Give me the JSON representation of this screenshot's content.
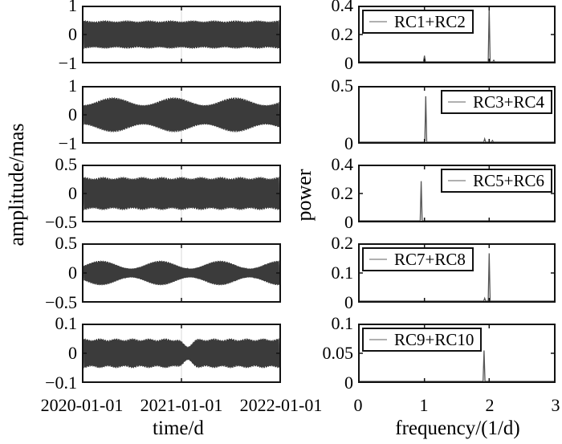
{
  "figure": {
    "background": "#ffffff",
    "frame_color": "#121212",
    "signal_color": "#3b3b3b",
    "spectrum_color": "#555555",
    "legend_sample_color": "#b0b0b0",
    "gridline_color": "#d9d9d9",
    "tick_color": "#121212"
  },
  "axes": {
    "left_ylabel": "amplitude/mas",
    "right_ylabel": "power",
    "left_xlabel": "time/d",
    "right_xlabel": "frequency/(1/d)"
  },
  "chart_data": {
    "layout": "5 rows x 2 columns",
    "left_column": {
      "type": "line",
      "xlabel": "time/d",
      "ylabel": "amplitude/mas",
      "xticklabels": [
        "2020-01-01",
        "2021-01-01",
        "2022-01-01"
      ],
      "grid_at": "2021-01-01",
      "panels": [
        {
          "name": "RC1+RC2 time series",
          "ylim": [
            -1,
            1
          ],
          "yticks": [
            "1",
            "0",
            "−1"
          ],
          "signal": {
            "amplitude": 0.5,
            "mod_depth": 0.02,
            "mod_cycles": 9,
            "mod_peak_t": 0.0,
            "carrier_cycles": 241
          }
        },
        {
          "name": "RC3+RC4 time series",
          "ylim": [
            -1,
            1
          ],
          "yticks": [
            "1",
            "0",
            "−1"
          ],
          "signal": {
            "amplitude": 0.5,
            "mod_depth": 0.14,
            "mod_cycles": 3.2,
            "mod_peak_t": 0.15,
            "carrier_cycles": 241
          }
        },
        {
          "name": "RC5+RC6 time series",
          "ylim": [
            -0.5,
            0.5
          ],
          "yticks": [
            "0.5",
            "0",
            "−0.5"
          ],
          "signal": {
            "amplitude": 0.29,
            "mod_depth": 0.015,
            "mod_cycles": 10,
            "mod_peak_t": 0.3,
            "carrier_cycles": 241
          }
        },
        {
          "name": "RC7+RC8 time series",
          "ylim": [
            -0.5,
            0.5
          ],
          "yticks": [
            "0.5",
            "0",
            "−0.5"
          ],
          "signal": {
            "amplitude": 0.15,
            "mod_depth": 0.07,
            "mod_cycles": 3.3,
            "mod_peak_t": 0.09,
            "carrier_cycles": 241
          }
        },
        {
          "name": "RC9+RC10 time series",
          "ylim": [
            -0.1,
            0.1
          ],
          "yticks": [
            "0.1",
            "0",
            "−0.1"
          ],
          "signal": {
            "amplitude": 0.05,
            "mod_depth": 0.003,
            "mod_cycles": 12,
            "mod_peak_t": 0.0,
            "carrier_cycles": 241,
            "notch": {
              "center": 0.53,
              "width": 0.022,
              "depth": 0.024
            }
          }
        }
      ]
    },
    "right_column": {
      "type": "line",
      "xlabel": "frequency/(1/d)",
      "ylabel": "power",
      "xlim": [
        0,
        3
      ],
      "xticklabels": [
        "0",
        "1",
        "2",
        "3"
      ],
      "panels": [
        {
          "legend": "RC1+RC2",
          "legend_pos": "top-left",
          "ylim": [
            0,
            0.4
          ],
          "yticks": [
            "0.4",
            "0.2",
            "0"
          ],
          "peaks": [
            {
              "freq": 1.0,
              "power": 0.045
            },
            {
              "freq": 2.0,
              "power": 0.4
            },
            {
              "freq": 2.07,
              "power": 0.012
            }
          ]
        },
        {
          "legend": "RC3+RC4",
          "legend_pos": "top-right",
          "ylim": [
            0,
            0.5
          ],
          "yticks": [
            "0.5",
            "0"
          ],
          "peaks": [
            {
              "freq": 1.02,
              "power": 0.42
            },
            {
              "freq": 1.93,
              "power": 0.03
            },
            {
              "freq": 2.05,
              "power": 0.015
            }
          ]
        },
        {
          "legend": "RC5+RC6",
          "legend_pos": "top-right",
          "ylim": [
            0,
            0.4
          ],
          "yticks": [
            "0.4",
            "0.2",
            "0"
          ],
          "peaks": [
            {
              "freq": 0.95,
              "power": 0.29
            }
          ]
        },
        {
          "legend": "RC7+RC8",
          "legend_pos": "top-left",
          "ylim": [
            0,
            0.2
          ],
          "yticks": [
            "0.2",
            "0.1",
            "0"
          ],
          "peaks": [
            {
              "freq": 1.93,
              "power": 0.01
            },
            {
              "freq": 2.0,
              "power": 0.17
            }
          ]
        },
        {
          "legend": "RC9+RC10",
          "legend_pos": "top-left",
          "ylim": [
            0,
            0.1
          ],
          "yticks": [
            "0.1",
            "0.05",
            "0"
          ],
          "peaks": [
            {
              "freq": 1.92,
              "power": 0.055
            }
          ]
        }
      ]
    }
  }
}
